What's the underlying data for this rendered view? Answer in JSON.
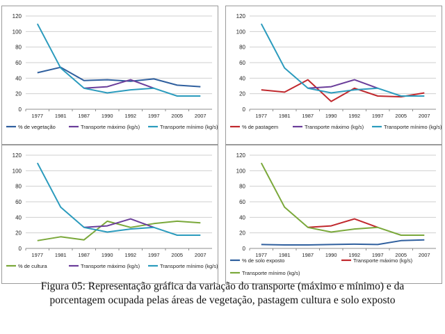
{
  "chart_data": [
    {
      "type": "line",
      "categories": [
        "1977",
        "1981",
        "1987",
        "1990",
        "1992",
        "1997",
        "2005",
        "2007"
      ],
      "ylim": [
        0,
        120
      ],
      "yticks": [
        0,
        20,
        40,
        60,
        80,
        100,
        120
      ],
      "grid": true,
      "legend_position": "bottom",
      "series": [
        {
          "name": "% de vegetação",
          "color": "#2f5f9e",
          "values": [
            47,
            54,
            37,
            38,
            36,
            39,
            31,
            29
          ]
        },
        {
          "name": "Transporte máximo (kg/s)",
          "color": "#6a3d9a",
          "values": [
            null,
            null,
            27,
            29,
            38,
            27,
            null,
            null
          ]
        },
        {
          "name": "Transporte mínimo (kg/s)",
          "color": "#2b9bbd",
          "values": [
            110,
            53,
            27,
            21,
            25,
            27,
            17,
            17
          ]
        }
      ]
    },
    {
      "type": "line",
      "categories": [
        "1977",
        "1981",
        "1987",
        "1990",
        "1992",
        "1997",
        "2005",
        "2007"
      ],
      "ylim": [
        0,
        120
      ],
      "yticks": [
        0,
        20,
        40,
        60,
        80,
        100,
        120
      ],
      "grid": true,
      "legend_position": "bottom",
      "series": [
        {
          "name": "% de pastagem",
          "color": "#c0282d",
          "values": [
            25,
            22,
            38,
            10,
            27,
            17,
            16,
            21
          ]
        },
        {
          "name": "Transporte máximo (kg/s)",
          "color": "#6a3d9a",
          "values": [
            null,
            null,
            27,
            29,
            38,
            27,
            null,
            null
          ]
        },
        {
          "name": "Transporte mínimo (kg/s)",
          "color": "#2b9bbd",
          "values": [
            110,
            53,
            27,
            21,
            25,
            27,
            17,
            17
          ]
        }
      ]
    },
    {
      "type": "line",
      "categories": [
        "1977",
        "1981",
        "1987",
        "1990",
        "1992",
        "1997",
        "2005",
        "2007"
      ],
      "ylim": [
        0,
        120
      ],
      "yticks": [
        0,
        20,
        40,
        60,
        80,
        100,
        120
      ],
      "grid": true,
      "legend_position": "bottom",
      "series": [
        {
          "name": "% de cultura",
          "color": "#7aa83a",
          "values": [
            10,
            15,
            11,
            35,
            27,
            32,
            35,
            33
          ]
        },
        {
          "name": "Transporte máximo (kg/s)",
          "color": "#6a3d9a",
          "values": [
            null,
            null,
            27,
            29,
            38,
            27,
            null,
            null
          ]
        },
        {
          "name": "Transporte mínimo (kg/s)",
          "color": "#2b9bbd",
          "values": [
            110,
            53,
            27,
            21,
            25,
            27,
            17,
            17
          ]
        }
      ]
    },
    {
      "type": "line",
      "categories": [
        "1977",
        "1981",
        "1987",
        "1990",
        "1992",
        "1997",
        "2005",
        "2007"
      ],
      "ylim": [
        0,
        120
      ],
      "yticks": [
        0,
        20,
        40,
        60,
        80,
        100,
        120
      ],
      "grid": true,
      "legend_position": "bottom",
      "series": [
        {
          "name": "% de solo exposto",
          "color": "#2f5f9e",
          "values": [
            5,
            4.5,
            4.5,
            5,
            5.5,
            5,
            10,
            11
          ]
        },
        {
          "name": "Transporte máximo (kg/s)",
          "color": "#c0282d",
          "values": [
            null,
            null,
            27,
            29,
            38,
            27,
            null,
            null
          ]
        },
        {
          "name": "Transporte mínimo (kg/s)",
          "color": "#7aa83a",
          "values": [
            110,
            53,
            27,
            21,
            25,
            27,
            17,
            17
          ]
        }
      ]
    }
  ],
  "caption": {
    "line1": "Figura 05: Representação gráfica da variação do transporte (máximo e mínimo) e da",
    "line2": "porcentagem ocupada pelas áreas de vegetação, pastagem cultura e solo exposto"
  }
}
